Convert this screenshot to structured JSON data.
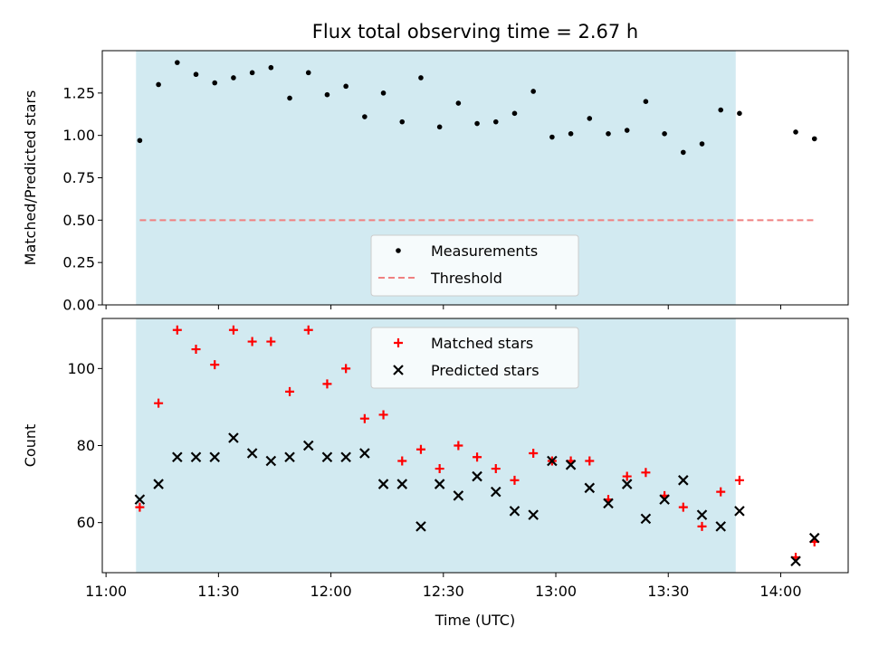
{
  "chart_data": {
    "title": "Flux total observing time = 2.67 h",
    "xlabel": "Time (UTC)",
    "x_tick_labels": [
      "11:00",
      "11:30",
      "12:00",
      "12:30",
      "13:00",
      "13:30",
      "14:00"
    ],
    "x_ticks": [
      "11:00",
      "11:30",
      "12:00",
      "12:30",
      "13:00",
      "13:30",
      "14:00"
    ],
    "xlim": [
      "10:59",
      "14:18"
    ],
    "observing_window": {
      "start": "11:08",
      "end": "13:48",
      "color": "#add8e6"
    },
    "panels": [
      {
        "type": "scatter",
        "ylabel": "Matched/Predicted stars",
        "ylim": [
          0.0,
          1.5
        ],
        "y_tick_labels": [
          "0.00",
          "0.25",
          "0.50",
          "0.75",
          "1.00",
          "1.25"
        ],
        "y_ticks": [
          0.0,
          0.25,
          0.5,
          0.75,
          1.0,
          1.25
        ],
        "legend": {
          "placement": "lower center",
          "entries": [
            "Measurements",
            "Threshold"
          ]
        },
        "series": [
          {
            "name": "Measurements",
            "marker": "dot",
            "color": "#000000",
            "x": [
              "11:09",
              "11:14",
              "11:19",
              "11:24",
              "11:29",
              "11:34",
              "11:39",
              "11:44",
              "11:49",
              "11:54",
              "11:59",
              "12:04",
              "12:09",
              "12:14",
              "12:19",
              "12:24",
              "12:29",
              "12:34",
              "12:39",
              "12:44",
              "12:49",
              "12:54",
              "12:59",
              "13:04",
              "13:09",
              "13:14",
              "13:19",
              "13:24",
              "13:29",
              "13:34",
              "13:39",
              "13:44",
              "13:49",
              "14:04",
              "14:09"
            ],
            "y": [
              0.97,
              1.3,
              1.43,
              1.36,
              1.31,
              1.34,
              1.37,
              1.4,
              1.22,
              1.37,
              1.24,
              1.29,
              1.11,
              1.25,
              1.08,
              1.34,
              1.05,
              1.19,
              1.07,
              1.08,
              1.13,
              1.26,
              0.99,
              1.01,
              1.1,
              1.01,
              1.03,
              1.2,
              1.01,
              0.9,
              0.95,
              1.15,
              1.13,
              1.02,
              0.98
            ]
          },
          {
            "name": "Threshold",
            "marker": "dashed-line",
            "color": "#f08080",
            "x": [
              "11:09",
              "14:09"
            ],
            "y": [
              0.5,
              0.5
            ]
          }
        ]
      },
      {
        "type": "scatter",
        "ylabel": "Count",
        "ylim": [
          47,
          113
        ],
        "y_tick_labels": [
          "60",
          "80",
          "100"
        ],
        "y_ticks": [
          60,
          80,
          100
        ],
        "legend": {
          "placement": "upper center",
          "entries": [
            "Matched stars",
            "Predicted stars"
          ]
        },
        "series": [
          {
            "name": "Matched stars",
            "marker": "plus",
            "color": "#ff0000",
            "x": [
              "11:09",
              "11:14",
              "11:19",
              "11:24",
              "11:29",
              "11:34",
              "11:39",
              "11:44",
              "11:49",
              "11:54",
              "11:59",
              "12:04",
              "12:09",
              "12:14",
              "12:19",
              "12:24",
              "12:29",
              "12:34",
              "12:39",
              "12:44",
              "12:49",
              "12:54",
              "12:59",
              "13:04",
              "13:09",
              "13:14",
              "13:19",
              "13:24",
              "13:29",
              "13:34",
              "13:39",
              "13:44",
              "13:49",
              "14:04",
              "14:09"
            ],
            "y": [
              64,
              91,
              110,
              105,
              101,
              110,
              107,
              107,
              94,
              110,
              96,
              100,
              87,
              88,
              76,
              79,
              74,
              80,
              77,
              74,
              71,
              78,
              76,
              76,
              76,
              66,
              72,
              73,
              67,
              64,
              59,
              68,
              71,
              51,
              55
            ]
          },
          {
            "name": "Predicted stars",
            "marker": "x",
            "color": "#000000",
            "x": [
              "11:09",
              "11:14",
              "11:19",
              "11:24",
              "11:29",
              "11:34",
              "11:39",
              "11:44",
              "11:49",
              "11:54",
              "11:59",
              "12:04",
              "12:09",
              "12:14",
              "12:19",
              "12:24",
              "12:29",
              "12:34",
              "12:39",
              "12:44",
              "12:49",
              "12:54",
              "12:59",
              "13:04",
              "13:09",
              "13:14",
              "13:19",
              "13:24",
              "13:29",
              "13:34",
              "13:39",
              "13:44",
              "13:49",
              "14:04",
              "14:09"
            ],
            "y": [
              66,
              70,
              77,
              77,
              77,
              82,
              78,
              76,
              77,
              80,
              77,
              77,
              78,
              70,
              70,
              59,
              70,
              67,
              72,
              68,
              63,
              62,
              76,
              75,
              69,
              65,
              70,
              61,
              66,
              71,
              62,
              59,
              63,
              50,
              56
            ]
          }
        ]
      }
    ]
  }
}
